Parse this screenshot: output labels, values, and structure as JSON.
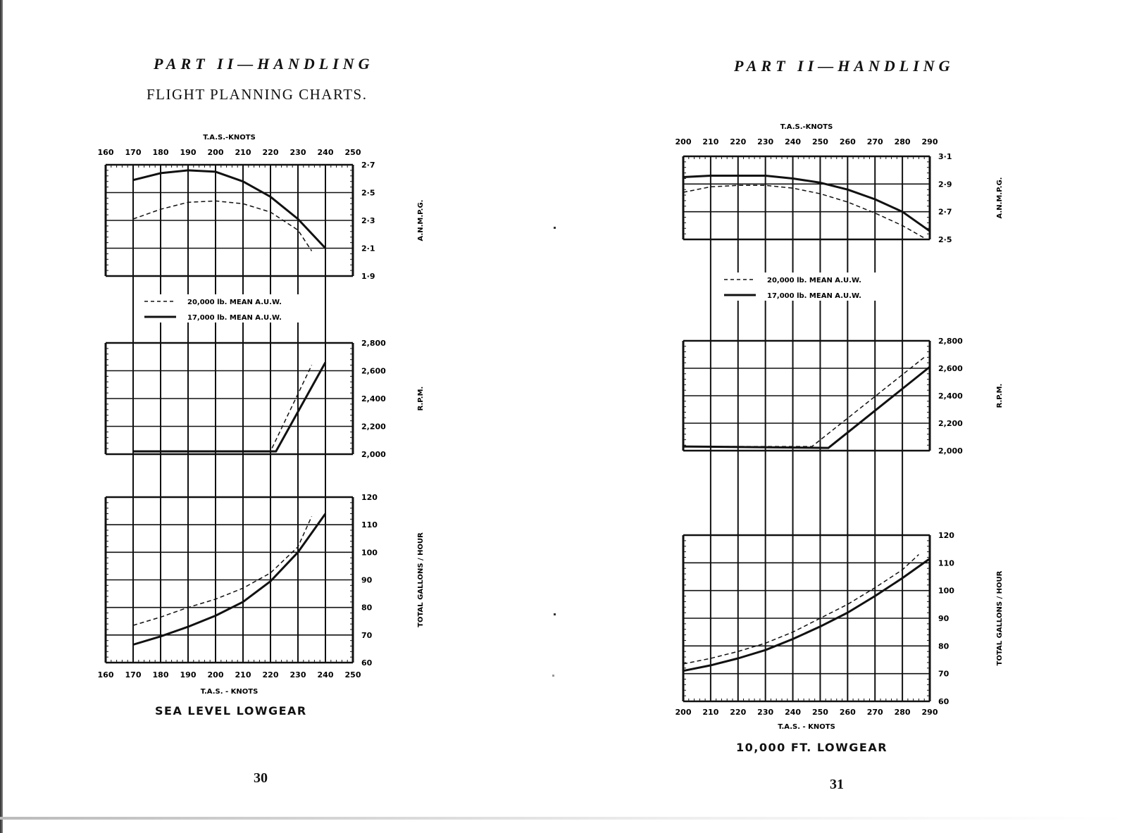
{
  "left_page": {
    "header": "PART II—HANDLING",
    "subtitle": "FLIGHT PLANNING CHARTS.",
    "chart_caption": "SEA LEVEL LOWGEAR",
    "page_number": "30"
  },
  "right_page": {
    "header": "PART II—HANDLING",
    "chart_caption": "10,000 FT. LOWGEAR",
    "page_number": "31"
  },
  "legend": {
    "dashed": "20,000 lb. MEAN A.U.W.",
    "solid": "17,000 lb. MEAN A.U.W."
  },
  "axis_labels": {
    "x_top": "T.A.S.-KNOTS",
    "x_bottom": "T.A.S. - KNOTS",
    "anmpg": "A.N.M.P.G.",
    "rpm": "R.P.M.",
    "gph": "TOTAL GALLONS / HOUR"
  },
  "chart_data": [
    {
      "type": "line",
      "title": "SEA LEVEL LOWGEAR",
      "xlabel": "T.A.S. - KNOTS",
      "x_ticks": [
        160,
        170,
        180,
        190,
        200,
        210,
        220,
        230,
        240,
        250
      ],
      "xlim": [
        160,
        250
      ],
      "grid": true,
      "legend_position": "between top and middle panels, upper left",
      "panels": [
        {
          "ylabel": "A.N.M.P.G.",
          "y_ticks": [
            "1·9",
            "2·1",
            "2·3",
            "2·5",
            "2·7"
          ],
          "ylim": [
            1.9,
            2.7
          ],
          "series": [
            {
              "name": "20,000 lb. MEAN A.U.W.",
              "style": "dashed",
              "x": [
                170,
                180,
                190,
                200,
                210,
                220,
                230,
                235
              ],
              "y": [
                2.31,
                2.38,
                2.43,
                2.44,
                2.42,
                2.36,
                2.23,
                2.08
              ]
            },
            {
              "name": "17,000 lb. MEAN A.U.W.",
              "style": "solid",
              "x": [
                170,
                180,
                190,
                200,
                210,
                220,
                230,
                240
              ],
              "y": [
                2.59,
                2.64,
                2.66,
                2.65,
                2.58,
                2.47,
                2.31,
                2.1
              ]
            }
          ]
        },
        {
          "ylabel": "R.P.M.",
          "y_ticks": [
            "2,000",
            "2,200",
            "2,400",
            "2,600",
            "2,800"
          ],
          "ylim": [
            2000,
            2800
          ],
          "series": [
            {
              "name": "20,000 lb. MEAN A.U.W.",
              "style": "dashed",
              "x": [
                170,
                220,
                235
              ],
              "y": [
                2020,
                2020,
                2640
              ]
            },
            {
              "name": "17,000 lb. MEAN A.U.W.",
              "style": "solid",
              "x": [
                170,
                222,
                240
              ],
              "y": [
                2020,
                2020,
                2660
              ]
            }
          ]
        },
        {
          "ylabel": "TOTAL GALLONS / HOUR",
          "y_ticks": [
            "60",
            "70",
            "80",
            "90",
            "100",
            "110",
            "120"
          ],
          "ylim": [
            60,
            120
          ],
          "series": [
            {
              "name": "20,000 lb. MEAN A.U.W.",
              "style": "dashed",
              "x": [
                170,
                180,
                190,
                200,
                210,
                220,
                230,
                235
              ],
              "y": [
                73.5,
                76.5,
                80,
                83,
                87,
                92.5,
                102,
                113
              ]
            },
            {
              "name": "17,000 lb. MEAN A.U.W.",
              "style": "solid",
              "x": [
                170,
                180,
                190,
                200,
                210,
                220,
                230,
                240
              ],
              "y": [
                66.5,
                69.5,
                73,
                77,
                82,
                89.5,
                100,
                114
              ]
            }
          ]
        }
      ]
    },
    {
      "type": "line",
      "title": "10,000 FT. LOWGEAR",
      "xlabel": "T.A.S. - KNOTS",
      "x_ticks": [
        200,
        210,
        220,
        230,
        240,
        250,
        260,
        270,
        280,
        290
      ],
      "xlim": [
        200,
        290
      ],
      "grid": true,
      "legend_position": "between top and middle panels, upper left",
      "panels": [
        {
          "ylabel": "A.N.M.P.G.",
          "y_ticks": [
            "2·5",
            "2·7",
            "2·9",
            "3·1"
          ],
          "ylim": [
            2.5,
            3.1
          ],
          "series": [
            {
              "name": "20,000 lb. MEAN A.U.W.",
              "style": "dashed",
              "x": [
                200,
                210,
                220,
                230,
                240,
                250,
                260,
                270,
                280,
                288
              ],
              "y": [
                2.84,
                2.88,
                2.89,
                2.89,
                2.87,
                2.83,
                2.77,
                2.69,
                2.6,
                2.51
              ]
            },
            {
              "name": "17,000 lb. MEAN A.U.W.",
              "style": "solid",
              "x": [
                200,
                210,
                220,
                230,
                240,
                250,
                260,
                270,
                280,
                290
              ],
              "y": [
                2.95,
                2.96,
                2.96,
                2.96,
                2.94,
                2.91,
                2.86,
                2.79,
                2.7,
                2.56
              ]
            }
          ]
        },
        {
          "ylabel": "R.P.M.",
          "y_ticks": [
            "2,000",
            "2,200",
            "2,400",
            "2,600",
            "2,800"
          ],
          "ylim": [
            2000,
            2800
          ],
          "series": [
            {
              "name": "20,000 lb. MEAN A.U.W.",
              "style": "dashed",
              "x": [
                200,
                247,
                288
              ],
              "y": [
                2030,
                2030,
                2680
              ]
            },
            {
              "name": "17,000 lb. MEAN A.U.W.",
              "style": "solid",
              "x": [
                200,
                253,
                290
              ],
              "y": [
                2030,
                2020,
                2610
              ]
            }
          ]
        },
        {
          "ylabel": "TOTAL GALLONS / HOUR",
          "y_ticks": [
            "60",
            "70",
            "80",
            "90",
            "100",
            "110",
            "120"
          ],
          "ylim": [
            60,
            120
          ],
          "series": [
            {
              "name": "20,000 lb. MEAN A.U.W.",
              "style": "dashed",
              "x": [
                200,
                210,
                220,
                230,
                240,
                250,
                260,
                270,
                280,
                286
              ],
              "y": [
                73.5,
                75.5,
                78,
                81,
                85,
                90,
                95,
                101,
                107.5,
                113
              ]
            },
            {
              "name": "17,000 lb. MEAN A.U.W.",
              "style": "solid",
              "x": [
                200,
                210,
                220,
                230,
                240,
                250,
                260,
                270,
                280,
                290
              ],
              "y": [
                71,
                73,
                75.5,
                78.5,
                82.5,
                87,
                92,
                98,
                104.5,
                111.5
              ]
            }
          ]
        }
      ]
    }
  ]
}
